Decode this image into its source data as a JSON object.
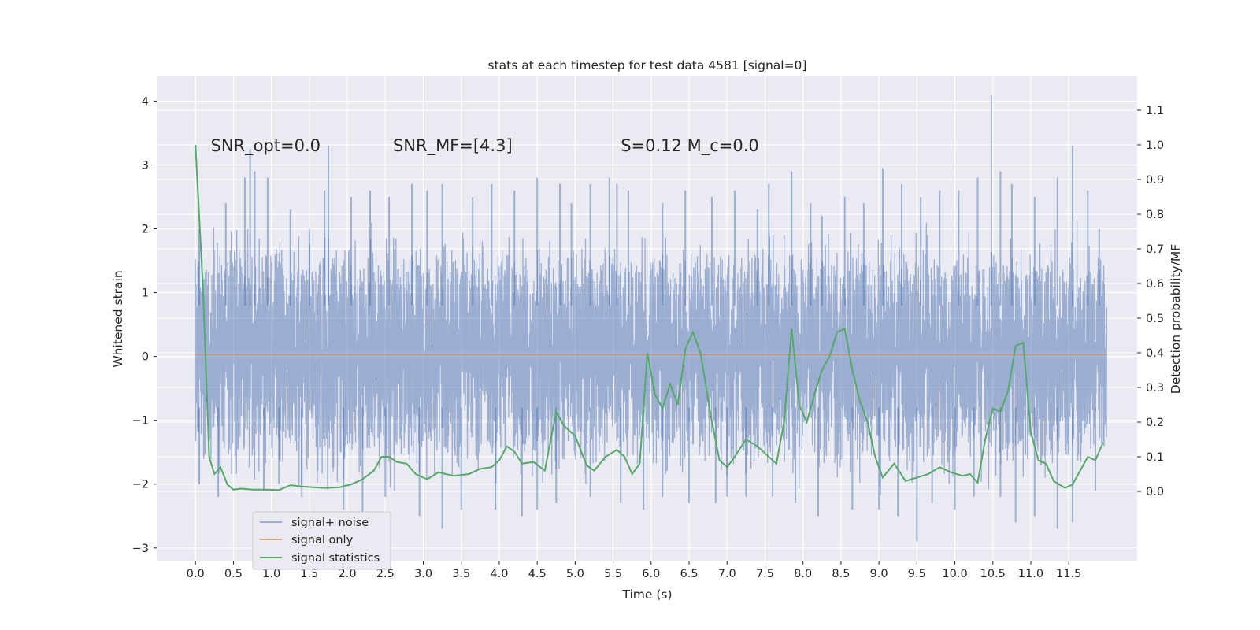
{
  "chart_data": {
    "type": "line",
    "title": "stats at each timestep for test data 4581 [signal=0]",
    "xlabel": "Time (s)",
    "ylabel": "Whitened strain",
    "ylabel_right": "Detection probability/MF",
    "xlim": [
      -0.5,
      12.4
    ],
    "ylim": [
      -3.2,
      4.4
    ],
    "ylim_right": [
      -0.2,
      1.2
    ],
    "xticks": [
      0.0,
      0.5,
      1.0,
      1.5,
      2.0,
      2.5,
      3.0,
      3.5,
      4.0,
      4.5,
      5.0,
      5.5,
      6.0,
      6.5,
      7.0,
      7.5,
      8.0,
      8.5,
      9.0,
      9.5,
      10.0,
      10.5,
      11.0,
      11.5
    ],
    "xtick_labels": [
      "0.0",
      "0.5",
      "1.0",
      "1.5",
      "2.0",
      "2.5",
      "3.0",
      "3.5",
      "4.0",
      "4.5",
      "5.0",
      "5.5",
      "6.0",
      "6.5",
      "7.0",
      "7.5",
      "8.0",
      "8.5",
      "9.0",
      "9.5",
      "10.0",
      "10.5",
      "11.0",
      "11.5"
    ],
    "yticks": [
      -3,
      -2,
      -1,
      0,
      1,
      2,
      3,
      4
    ],
    "ytick_labels": [
      "−3",
      "−2",
      "−1",
      "0",
      "1",
      "2",
      "3",
      "4"
    ],
    "yticks_right": [
      0.0,
      0.1,
      0.2,
      0.3,
      0.4,
      0.5,
      0.6,
      0.7,
      0.8,
      0.9,
      1.0,
      1.1
    ],
    "ytick_labels_right": [
      "0.0",
      "0.1",
      "0.2",
      "0.3",
      "0.4",
      "0.5",
      "0.6",
      "0.7",
      "0.8",
      "0.9",
      "1.0",
      "1.1"
    ],
    "grid": true,
    "legend_position": "lower-left",
    "annotations": [
      {
        "x": 0.2,
        "y": 3.3,
        "text": "SNR_opt=0.0",
        "italic_prefix": ""
      },
      {
        "x": 2.6,
        "y": 3.3,
        "text": "SNR_MF=[4.3]",
        "italic_prefix": ""
      },
      {
        "x": 5.6,
        "y": 3.3,
        "text": "S=0.12   M_c=0.0",
        "italic_prefix": ""
      }
    ],
    "series": [
      {
        "name": "signal+ noise",
        "color": "#4c72b0",
        "alpha": 0.5,
        "axis": "left",
        "x_range": [
          0.0,
          12.0
        ],
        "envelope": {
          "dense_upper": 1.2,
          "dense_lower": -1.05
        },
        "peaks": [
          [
            0.05,
            2.0
          ],
          [
            0.4,
            2.4
          ],
          [
            0.65,
            2.8
          ],
          [
            0.72,
            3.25
          ],
          [
            0.78,
            2.9
          ],
          [
            0.95,
            2.8
          ],
          [
            1.25,
            2.3
          ],
          [
            1.5,
            2.0
          ],
          [
            1.7,
            2.6
          ],
          [
            1.75,
            3.3
          ],
          [
            2.05,
            2.5
          ],
          [
            2.3,
            2.6
          ],
          [
            2.55,
            2.5
          ],
          [
            2.85,
            2.7
          ],
          [
            3.05,
            2.6
          ],
          [
            3.25,
            2.7
          ],
          [
            3.65,
            2.5
          ],
          [
            3.9,
            2.7
          ],
          [
            4.2,
            2.6
          ],
          [
            4.5,
            2.8
          ],
          [
            4.8,
            2.7
          ],
          [
            4.95,
            2.4
          ],
          [
            5.2,
            2.7
          ],
          [
            5.45,
            2.8
          ],
          [
            5.55,
            2.7
          ],
          [
            5.7,
            2.6
          ],
          [
            6.15,
            2.4
          ],
          [
            6.45,
            2.6
          ],
          [
            6.8,
            2.5
          ],
          [
            7.1,
            2.6
          ],
          [
            7.4,
            2.3
          ],
          [
            7.55,
            2.7
          ],
          [
            7.85,
            2.9
          ],
          [
            8.1,
            2.4
          ],
          [
            8.25,
            2.2
          ],
          [
            8.55,
            2.5
          ],
          [
            8.8,
            2.4
          ],
          [
            9.05,
            2.95
          ],
          [
            9.3,
            2.7
          ],
          [
            9.55,
            2.5
          ],
          [
            9.8,
            2.6
          ],
          [
            10.05,
            2.6
          ],
          [
            10.3,
            2.8
          ],
          [
            10.48,
            4.1
          ],
          [
            10.6,
            2.9
          ],
          [
            10.75,
            2.7
          ],
          [
            11.05,
            2.5
          ],
          [
            11.35,
            2.8
          ],
          [
            11.55,
            3.3
          ],
          [
            11.75,
            2.6
          ],
          [
            11.9,
            2.0
          ]
        ],
        "troughs": [
          [
            0.05,
            -2.0
          ],
          [
            0.3,
            -2.2
          ],
          [
            0.9,
            -2.1
          ],
          [
            1.1,
            -2.0
          ],
          [
            1.4,
            -2.2
          ],
          [
            1.95,
            -2.4
          ],
          [
            2.2,
            -2.5
          ],
          [
            2.5,
            -2.2
          ],
          [
            2.95,
            -2.5
          ],
          [
            3.25,
            -2.7
          ],
          [
            3.5,
            -2.4
          ],
          [
            3.95,
            -2.4
          ],
          [
            4.3,
            -2.5
          ],
          [
            4.5,
            -2.4
          ],
          [
            4.75,
            -2.3
          ],
          [
            5.2,
            -2.2
          ],
          [
            5.6,
            -2.3
          ],
          [
            5.9,
            -2.4
          ],
          [
            6.15,
            -2.2
          ],
          [
            6.5,
            -2.3
          ],
          [
            6.85,
            -2.3
          ],
          [
            7.0,
            -2.2
          ],
          [
            7.25,
            -2.2
          ],
          [
            7.6,
            -2.2
          ],
          [
            7.9,
            -2.3
          ],
          [
            8.2,
            -2.5
          ],
          [
            8.65,
            -2.4
          ],
          [
            9.0,
            -2.4
          ],
          [
            9.25,
            -2.5
          ],
          [
            9.5,
            -2.9
          ],
          [
            9.7,
            -2.3
          ],
          [
            10.0,
            -2.4
          ],
          [
            10.25,
            -2.2
          ],
          [
            10.6,
            -2.2
          ],
          [
            10.8,
            -2.6
          ],
          [
            11.05,
            -2.5
          ],
          [
            11.35,
            -2.7
          ],
          [
            11.55,
            -2.6
          ],
          [
            11.85,
            -2.1
          ]
        ]
      },
      {
        "name": "signal only",
        "color": "#dd8452",
        "alpha": 0.7,
        "axis": "left",
        "x": [
          0.0,
          12.0
        ],
        "y": [
          0.03,
          0.03
        ]
      },
      {
        "name": "signal statistics",
        "color": "#55a868",
        "alpha": 1.0,
        "axis": "right",
        "x": [
          0.0,
          0.1,
          0.18,
          0.25,
          0.33,
          0.42,
          0.5,
          0.6,
          0.75,
          0.9,
          1.1,
          1.25,
          1.4,
          1.55,
          1.7,
          1.9,
          2.05,
          2.2,
          2.35,
          2.45,
          2.55,
          2.65,
          2.78,
          2.9,
          3.05,
          3.2,
          3.4,
          3.6,
          3.75,
          3.9,
          4.0,
          4.1,
          4.2,
          4.3,
          4.45,
          4.6,
          4.75,
          4.85,
          5.0,
          5.15,
          5.25,
          5.4,
          5.55,
          5.65,
          5.75,
          5.85,
          5.95,
          6.05,
          6.15,
          6.25,
          6.35,
          6.45,
          6.55,
          6.65,
          6.8,
          6.9,
          7.0,
          7.1,
          7.25,
          7.4,
          7.55,
          7.65,
          7.75,
          7.85,
          7.95,
          8.05,
          8.15,
          8.25,
          8.35,
          8.45,
          8.55,
          8.65,
          8.75,
          8.85,
          8.95,
          9.05,
          9.2,
          9.35,
          9.5,
          9.65,
          9.8,
          9.95,
          10.1,
          10.2,
          10.3,
          10.4,
          10.5,
          10.6,
          10.7,
          10.8,
          10.9,
          11.0,
          11.1,
          11.2,
          11.3,
          11.45,
          11.55,
          11.65,
          11.75,
          11.85,
          11.95
        ],
        "y": [
          1.0,
          0.58,
          0.1,
          0.05,
          0.07,
          0.02,
          0.005,
          0.008,
          0.005,
          0.005,
          0.004,
          0.018,
          0.014,
          0.012,
          0.01,
          0.012,
          0.02,
          0.035,
          0.06,
          0.1,
          0.1,
          0.085,
          0.08,
          0.05,
          0.035,
          0.055,
          0.045,
          0.05,
          0.065,
          0.07,
          0.09,
          0.13,
          0.115,
          0.08,
          0.085,
          0.06,
          0.23,
          0.19,
          0.16,
          0.075,
          0.06,
          0.1,
          0.12,
          0.1,
          0.05,
          0.08,
          0.4,
          0.28,
          0.24,
          0.31,
          0.25,
          0.41,
          0.46,
          0.4,
          0.2,
          0.09,
          0.07,
          0.1,
          0.15,
          0.13,
          0.1,
          0.08,
          0.2,
          0.47,
          0.25,
          0.2,
          0.28,
          0.35,
          0.39,
          0.46,
          0.47,
          0.35,
          0.26,
          0.2,
          0.1,
          0.04,
          0.08,
          0.03,
          0.04,
          0.05,
          0.07,
          0.055,
          0.045,
          0.05,
          0.025,
          0.15,
          0.24,
          0.23,
          0.29,
          0.42,
          0.43,
          0.17,
          0.09,
          0.08,
          0.03,
          0.01,
          0.02,
          0.06,
          0.1,
          0.09,
          0.14
        ]
      }
    ]
  }
}
